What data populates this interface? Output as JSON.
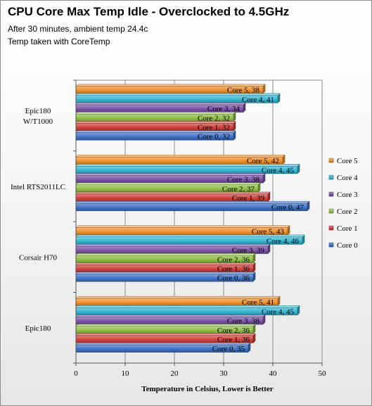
{
  "chart_data": {
    "type": "bar",
    "orientation": "horizontal",
    "title": "CPU Core Max Temp Idle - Overclocked to 4.5GHz",
    "subtitle_lines": [
      "After 30 minutes, ambient temp 24.4c",
      "Temp taken with CoreTemp"
    ],
    "xlabel": "Temperature in Celsius,  Lower is Better",
    "xlim": [
      0,
      50
    ],
    "xticks": [
      0,
      10,
      20,
      30,
      40,
      50
    ],
    "categories": [
      {
        "lines": [
          "Epic180",
          "W/T1000"
        ]
      },
      {
        "lines": [
          "Intel RTS2011LC"
        ]
      },
      {
        "lines": [
          "Corsair H70"
        ]
      },
      {
        "lines": [
          "Epic180"
        ]
      }
    ],
    "series": [
      {
        "name": "Core 5",
        "color": "#f0902c",
        "values": [
          38,
          42,
          43,
          41
        ]
      },
      {
        "name": "Core 4",
        "color": "#34b6d3",
        "values": [
          41,
          45,
          46,
          45
        ]
      },
      {
        "name": "Core 3",
        "color": "#7c53a8",
        "values": [
          34,
          38,
          39,
          38
        ]
      },
      {
        "name": "Core 2",
        "color": "#90bf47",
        "values": [
          32,
          37,
          36,
          36
        ]
      },
      {
        "name": "Core 1",
        "color": "#d0403c",
        "values": [
          32,
          39,
          36,
          36
        ]
      },
      {
        "name": "Core 0",
        "color": "#3f72c6",
        "values": [
          32,
          47,
          36,
          35
        ]
      }
    ],
    "legend_position": "right",
    "grid": "vertical gridlines"
  }
}
